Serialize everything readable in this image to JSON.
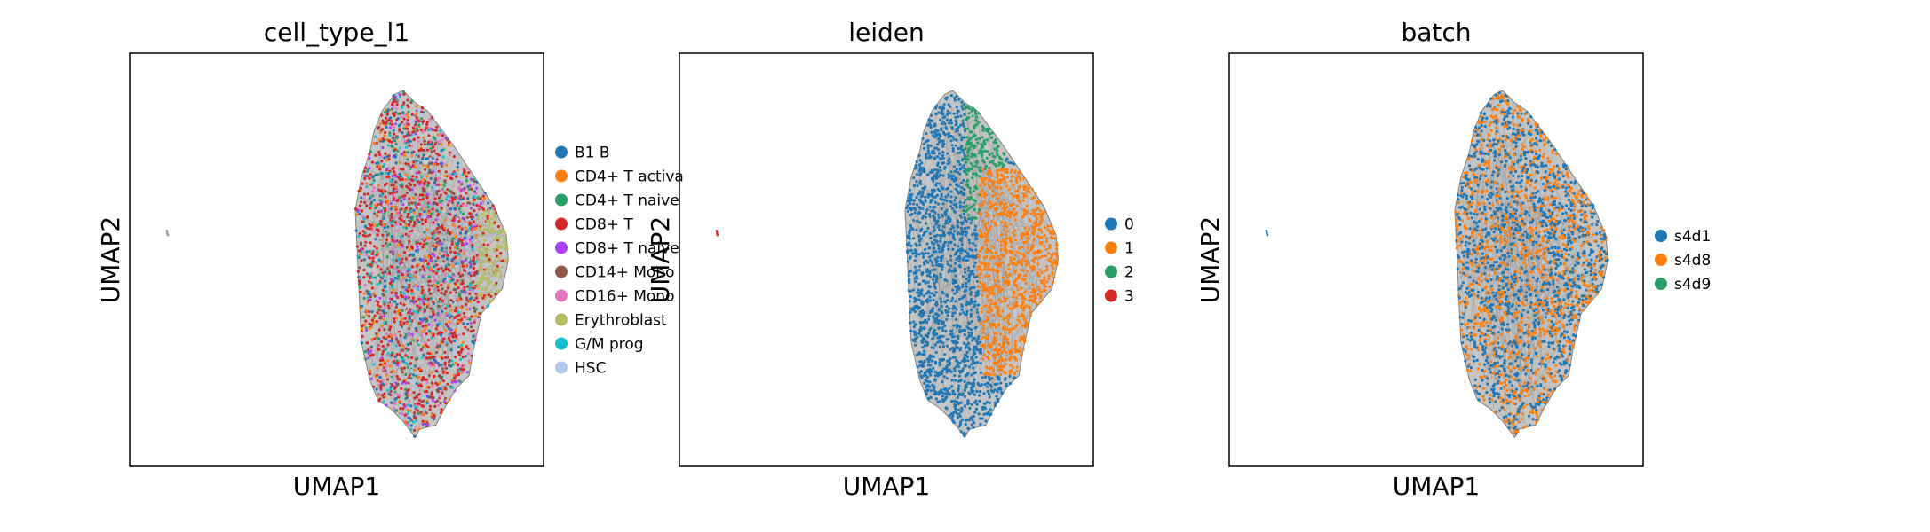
{
  "chart_data": [
    {
      "type": "scatter",
      "title": "cell_type_l1",
      "xlabel": "UMAP1",
      "ylabel": "UMAP2",
      "grid": false,
      "legend_placement": "right",
      "legend": [
        {
          "label": "B1 B",
          "color": "#1f77b4"
        },
        {
          "label": "CD4+ T activa",
          "color": "#ff7f0e"
        },
        {
          "label": "CD4+ T naive",
          "color": "#279e68"
        },
        {
          "label": "CD8+ T",
          "color": "#d62728"
        },
        {
          "label": "CD8+ T naive",
          "color": "#aa40fc"
        },
        {
          "label": "CD14+ Mono",
          "color": "#8c564b"
        },
        {
          "label": "CD16+ Mono",
          "color": "#e377c2"
        },
        {
          "label": "Erythroblast",
          "color": "#b5bd61"
        },
        {
          "label": "G/M prog",
          "color": "#17becf"
        },
        {
          "label": "HSC",
          "color": "#aec7e8"
        }
      ]
    },
    {
      "type": "scatter",
      "title": "leiden",
      "xlabel": "UMAP1",
      "ylabel": "UMAP2",
      "grid": false,
      "legend_placement": "right",
      "legend": [
        {
          "label": "0",
          "color": "#1f77b4"
        },
        {
          "label": "1",
          "color": "#ff7f0e"
        },
        {
          "label": "2",
          "color": "#279e68"
        },
        {
          "label": "3",
          "color": "#d62728"
        }
      ]
    },
    {
      "type": "scatter",
      "title": "batch",
      "xlabel": "UMAP1",
      "ylabel": "UMAP2",
      "grid": false,
      "legend_placement": "right",
      "legend": [
        {
          "label": "s4d1",
          "color": "#1f77b4"
        },
        {
          "label": "s4d8",
          "color": "#ff7f0e"
        },
        {
          "label": "s4d9",
          "color": "#279e68"
        }
      ]
    }
  ]
}
